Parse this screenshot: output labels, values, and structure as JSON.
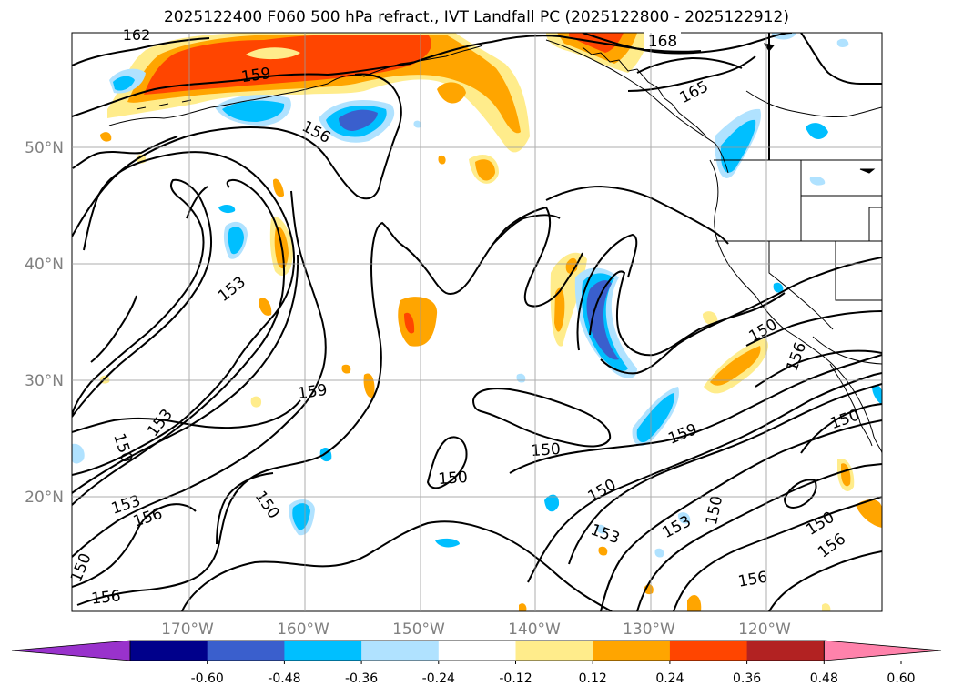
{
  "title": "2025122400 F060 500 hPa refract., IVT Landfall PC (2025122800 - 2025122912)",
  "map": {
    "lat_labels": [
      "50°N",
      "40°N",
      "30°N",
      "20°N"
    ],
    "lon_labels": [
      "170°W",
      "160°W",
      "150°W",
      "140°W",
      "130°W",
      "120°W"
    ],
    "contour_labels": [
      "162",
      "168",
      "159",
      "165",
      "156",
      "153",
      "159",
      "153",
      "150",
      "153",
      "150",
      "150",
      "150",
      "156",
      "150",
      "156",
      "159",
      "150",
      "153",
      "153",
      "150",
      "150",
      "156",
      "156",
      "150",
      "156"
    ]
  },
  "colorbar": {
    "ticks": [
      "-0.60",
      "-0.48",
      "-0.36",
      "-0.24",
      "-0.12",
      "0.12",
      "0.24",
      "0.36",
      "0.48",
      "0.60"
    ],
    "colors": [
      "#9932cc",
      "#00008b",
      "#3a5fcd",
      "#00bfff",
      "#b0e2ff",
      "#ffffff",
      "#ffec8b",
      "#ffa500",
      "#ff4500",
      "#b22222",
      "#ff82ab"
    ]
  }
}
